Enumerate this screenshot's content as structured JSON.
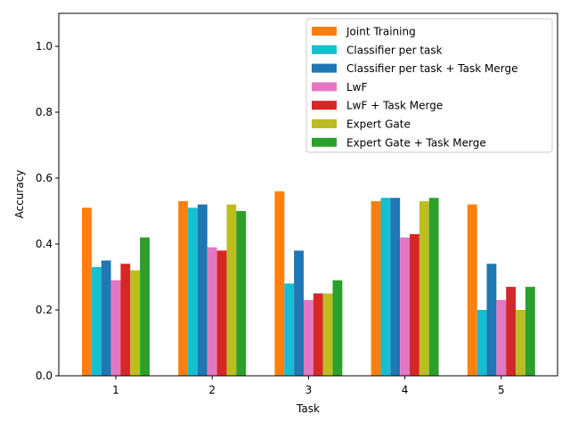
{
  "chart_data": {
    "type": "bar",
    "categories": [
      "1",
      "2",
      "3",
      "4",
      "5"
    ],
    "series": [
      {
        "name": "Joint Training",
        "color": "#ff7f0e",
        "values": [
          0.51,
          0.53,
          0.56,
          0.53,
          0.52
        ]
      },
      {
        "name": "Classifier per task",
        "color": "#17becf",
        "values": [
          0.33,
          0.51,
          0.28,
          0.54,
          0.2
        ]
      },
      {
        "name": "Classifier per task + Task Merge",
        "color": "#1f77b4",
        "values": [
          0.35,
          0.52,
          0.38,
          0.54,
          0.34
        ]
      },
      {
        "name": "LwF",
        "color": "#e377c2",
        "values": [
          0.29,
          0.39,
          0.23,
          0.42,
          0.23
        ]
      },
      {
        "name": "LwF + Task Merge",
        "color": "#d62728",
        "values": [
          0.34,
          0.38,
          0.25,
          0.43,
          0.27
        ]
      },
      {
        "name": "Expert Gate",
        "color": "#bcbd22",
        "values": [
          0.32,
          0.52,
          0.25,
          0.53,
          0.2
        ]
      },
      {
        "name": "Expert Gate + Task Merge",
        "color": "#2ca02c",
        "values": [
          0.42,
          0.5,
          0.29,
          0.54,
          0.27
        ]
      }
    ],
    "xlabel": "Task",
    "ylabel": "Accuracy",
    "ylim": [
      0,
      1.1
    ],
    "yticks": [
      "0.0",
      "0.2",
      "0.4",
      "0.6",
      "0.8",
      "1.0"
    ],
    "grid": false,
    "legend_position": "top-right"
  }
}
